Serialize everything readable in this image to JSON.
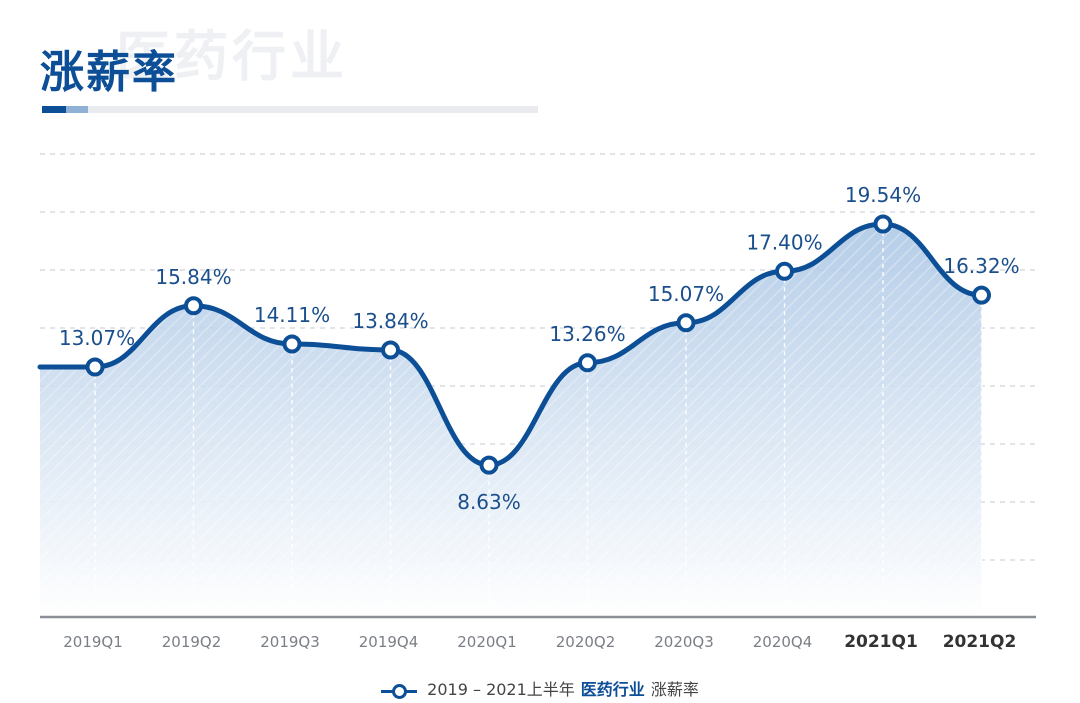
{
  "page": {
    "title": "涨薪率",
    "watermark": "医药行业"
  },
  "legend": {
    "text_range": "2019 – 2021上半年",
    "text_highlight": "医药行业",
    "text_metric": "涨薪率"
  },
  "colors": {
    "line": "#0d4f96",
    "fill": "#bcd2ea",
    "grid": "#cfd5dc",
    "axis": "#8a8f96",
    "label": "#1a4f8c",
    "tick": "#7a7f86",
    "tick_emphasis": "#333333"
  },
  "chart_data": {
    "type": "area",
    "categories": [
      "2019Q1",
      "2019Q2",
      "2019Q3",
      "2019Q4",
      "2020Q1",
      "2020Q2",
      "2020Q3",
      "2020Q4",
      "2021Q1",
      "2021Q2"
    ],
    "emphasized_categories": [
      "2021Q1",
      "2021Q2"
    ],
    "series": [
      {
        "values": [
          13.07,
          15.84,
          14.11,
          13.84,
          8.63,
          13.26,
          15.07,
          17.4,
          19.54,
          16.32
        ]
      }
    ],
    "data_labels": [
      "13.07%",
      "15.84%",
      "14.11%",
      "13.84%",
      "8.63%",
      "13.26%",
      "15.07%",
      "17.40%",
      "19.54%",
      "16.32%"
    ],
    "data_label_position": [
      "above",
      "above",
      "above",
      "above",
      "below",
      "above",
      "above",
      "above",
      "above",
      "above"
    ],
    "ylim": [
      0,
      22
    ],
    "grid": true,
    "title": "涨薪率",
    "xlabel": "",
    "ylabel": ""
  }
}
